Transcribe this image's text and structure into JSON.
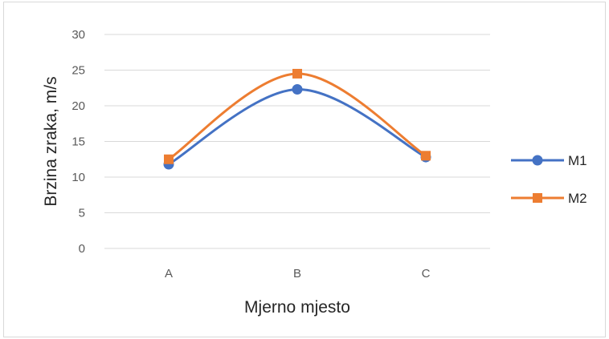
{
  "chart_data": {
    "type": "line",
    "smooth": true,
    "categories": [
      "A",
      "B",
      "C"
    ],
    "series": [
      {
        "name": "M1",
        "values": [
          11.8,
          22.3,
          12.8
        ],
        "color": "#4472c4",
        "marker": "circle"
      },
      {
        "name": "M2",
        "values": [
          12.5,
          24.5,
          13.0
        ],
        "color": "#ed7d31",
        "marker": "square"
      }
    ],
    "title": "",
    "xlabel": "Mjerno mjesto",
    "ylabel": "Brzina zraka, m/s",
    "ylim": [
      0,
      30
    ],
    "yticks": [
      "0",
      "5",
      "10",
      "15",
      "20",
      "25",
      "30"
    ],
    "grid": true,
    "legend_position": "right"
  }
}
